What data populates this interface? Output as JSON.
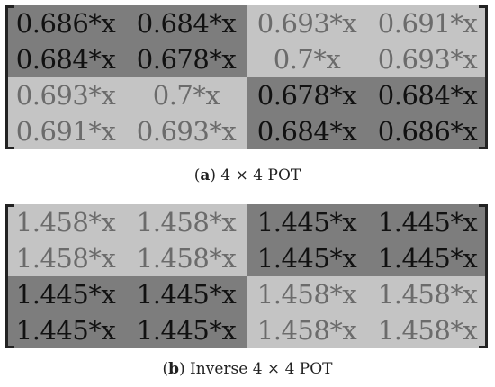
{
  "colors": {
    "dark_block": "#7d7d7d",
    "light_block": "#c4c4c4"
  },
  "matrix_a": {
    "caption_letter": "a",
    "caption_text": " 4 × 4 POT",
    "rows": [
      [
        "0.686*x",
        "0.684*x",
        "0.693*x",
        "0.691*x"
      ],
      [
        "0.684*x",
        "0.678*x",
        "0.7*x",
        "0.693*x"
      ],
      [
        "0.693*x",
        "0.7*x",
        "0.678*x",
        "0.684*x"
      ],
      [
        "0.691*x",
        "0.693*x",
        "0.684*x",
        "0.686*x"
      ]
    ],
    "shade": [
      [
        "dark",
        "dark",
        "light",
        "light"
      ],
      [
        "dark",
        "dark",
        "light",
        "light"
      ],
      [
        "light",
        "light",
        "dark",
        "dark"
      ],
      [
        "light",
        "light",
        "dark",
        "dark"
      ]
    ]
  },
  "matrix_b": {
    "caption_letter": "b",
    "caption_text": " Inverse 4 × 4 POT",
    "rows": [
      [
        "1.458*x",
        "1.458*x",
        "1.445*x",
        "1.445*x"
      ],
      [
        "1.458*x",
        "1.458*x",
        "1.445*x",
        "1.445*x"
      ],
      [
        "1.445*x",
        "1.445*x",
        "1.458*x",
        "1.458*x"
      ],
      [
        "1.445*x",
        "1.445*x",
        "1.458*x",
        "1.458*x"
      ]
    ],
    "shade": [
      [
        "light",
        "light",
        "dark",
        "dark"
      ],
      [
        "light",
        "light",
        "dark",
        "dark"
      ],
      [
        "dark",
        "dark",
        "light",
        "light"
      ],
      [
        "dark",
        "dark",
        "light",
        "light"
      ]
    ]
  }
}
